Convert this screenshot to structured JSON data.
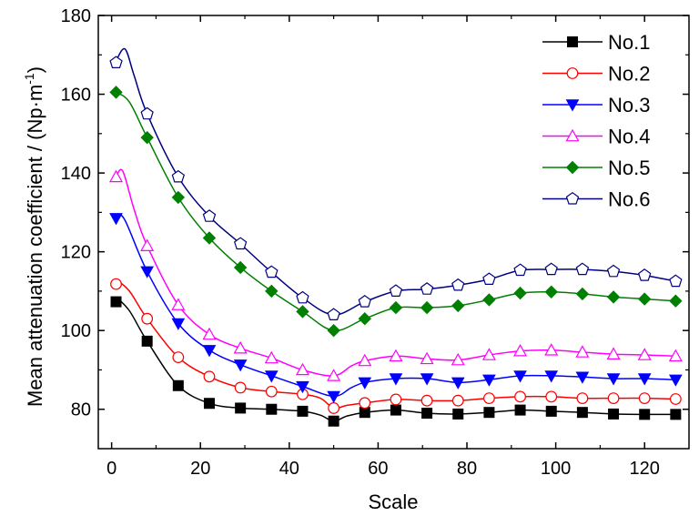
{
  "chart_data": {
    "type": "line",
    "xlabel": "Scale",
    "ylabel": "Mean attenuation coefficient / (Np·m",
    "ylabel_sup": "-1",
    "ylabel_end": ")",
    "xlim": [
      -3,
      130
    ],
    "ylim": [
      70,
      180
    ],
    "xticks": [
      0,
      20,
      40,
      60,
      80,
      100,
      120
    ],
    "yticks": [
      80,
      100,
      120,
      140,
      160,
      180
    ],
    "legend_position": "top-right",
    "grid": false,
    "series": [
      {
        "name": "No.1",
        "color": "#000000",
        "marker": "square-filled",
        "x": [
          1,
          8,
          15,
          22,
          29,
          36,
          43,
          50,
          57,
          64,
          71,
          78,
          85,
          92,
          99,
          106,
          113,
          120,
          127
        ],
        "y": [
          107.3,
          97.3,
          86.0,
          81.5,
          80.3,
          80.0,
          79.5,
          77.0,
          79.2,
          79.8,
          79.0,
          78.8,
          79.2,
          79.8,
          79.5,
          79.2,
          78.8,
          78.7,
          78.7
        ],
        "line_path": [
          [
            1,
            108.5
          ],
          [
            4,
            105
          ],
          [
            8,
            97.3
          ],
          [
            15,
            86.0
          ],
          [
            22,
            81.5
          ],
          [
            29,
            80.3
          ],
          [
            36,
            80.0
          ],
          [
            43,
            79.5
          ],
          [
            47,
            78.5
          ],
          [
            50,
            77.0
          ],
          [
            53,
            78.3
          ],
          [
            57,
            79.2
          ],
          [
            64,
            79.8
          ],
          [
            71,
            79.0
          ],
          [
            78,
            78.8
          ],
          [
            85,
            79.2
          ],
          [
            92,
            79.8
          ],
          [
            99,
            79.5
          ],
          [
            106,
            79.2
          ],
          [
            113,
            78.8
          ],
          [
            120,
            78.7
          ],
          [
            127,
            78.7
          ]
        ]
      },
      {
        "name": "No.2",
        "color": "#ff0000",
        "marker": "circle-open",
        "x": [
          1,
          8,
          15,
          22,
          29,
          36,
          43,
          50,
          57,
          64,
          71,
          78,
          85,
          92,
          99,
          106,
          113,
          120,
          127
        ],
        "y": [
          111.8,
          103.0,
          93.2,
          88.3,
          85.5,
          84.5,
          83.8,
          80.3,
          81.6,
          82.5,
          82.2,
          82.2,
          82.8,
          83.2,
          83.2,
          82.8,
          82.8,
          82.8,
          82.6
        ],
        "line_path": [
          [
            1,
            113
          ],
          [
            4,
            110
          ],
          [
            8,
            103.0
          ],
          [
            15,
            93.2
          ],
          [
            22,
            88.3
          ],
          [
            29,
            85.5
          ],
          [
            36,
            84.5
          ],
          [
            43,
            83.8
          ],
          [
            47,
            82.8
          ],
          [
            50,
            80.3
          ],
          [
            53,
            81.0
          ],
          [
            57,
            81.6
          ],
          [
            64,
            82.5
          ],
          [
            71,
            82.2
          ],
          [
            78,
            82.2
          ],
          [
            85,
            82.8
          ],
          [
            92,
            83.2
          ],
          [
            99,
            83.2
          ],
          [
            106,
            82.8
          ],
          [
            113,
            82.8
          ],
          [
            120,
            82.8
          ],
          [
            127,
            82.6
          ]
        ]
      },
      {
        "name": "No.3",
        "color": "#0000ff",
        "marker": "triangle-down-filled",
        "x": [
          1,
          8,
          15,
          22,
          29,
          36,
          43,
          50,
          57,
          64,
          71,
          78,
          85,
          92,
          99,
          106,
          113,
          120,
          127
        ],
        "y": [
          128.5,
          115.0,
          101.8,
          95.0,
          91.3,
          88.5,
          85.8,
          83.3,
          86.8,
          87.8,
          87.8,
          86.8,
          87.5,
          88.5,
          88.5,
          88.2,
          87.8,
          87.8,
          87.5
        ],
        "line_path": [
          [
            1,
            129.5
          ],
          [
            3,
            128
          ],
          [
            8,
            115.0
          ],
          [
            15,
            101.8
          ],
          [
            22,
            95.0
          ],
          [
            29,
            91.3
          ],
          [
            36,
            88.5
          ],
          [
            43,
            85.8
          ],
          [
            50,
            83.3
          ],
          [
            54,
            85.5
          ],
          [
            57,
            86.8
          ],
          [
            64,
            87.8
          ],
          [
            71,
            87.8
          ],
          [
            78,
            86.8
          ],
          [
            85,
            87.5
          ],
          [
            92,
            88.5
          ],
          [
            99,
            88.5
          ],
          [
            106,
            88.2
          ],
          [
            113,
            87.8
          ],
          [
            120,
            87.8
          ],
          [
            127,
            87.5
          ]
        ]
      },
      {
        "name": "No.4",
        "color": "#ff00ff",
        "marker": "triangle-up-open",
        "x": [
          1,
          8,
          15,
          22,
          29,
          36,
          43,
          50,
          57,
          64,
          71,
          78,
          85,
          92,
          99,
          106,
          113,
          120,
          127
        ],
        "y": [
          139.0,
          121.5,
          106.5,
          99.0,
          95.5,
          93.0,
          90.0,
          88.5,
          92.3,
          93.5,
          92.8,
          92.5,
          93.8,
          94.8,
          95.0,
          94.5,
          94.0,
          93.8,
          93.5
        ],
        "line_path": [
          [
            1,
            139
          ],
          [
            2.5,
            140.5
          ],
          [
            5,
            131
          ],
          [
            8,
            121.5
          ],
          [
            15,
            106.5
          ],
          [
            22,
            99.0
          ],
          [
            29,
            95.5
          ],
          [
            36,
            93.0
          ],
          [
            43,
            90.0
          ],
          [
            50,
            88.5
          ],
          [
            54,
            91
          ],
          [
            57,
            92.3
          ],
          [
            64,
            93.5
          ],
          [
            71,
            92.8
          ],
          [
            78,
            92.5
          ],
          [
            85,
            93.8
          ],
          [
            92,
            94.8
          ],
          [
            99,
            95.0
          ],
          [
            106,
            94.5
          ],
          [
            113,
            94.0
          ],
          [
            120,
            93.8
          ],
          [
            127,
            93.5
          ]
        ]
      },
      {
        "name": "No.5",
        "color": "#008000",
        "marker": "diamond-filled",
        "x": [
          1,
          8,
          15,
          22,
          29,
          36,
          43,
          50,
          57,
          64,
          71,
          78,
          85,
          92,
          99,
          106,
          113,
          120,
          127
        ],
        "y": [
          160.5,
          149.0,
          133.8,
          123.5,
          116.0,
          110.0,
          104.8,
          100.0,
          103.0,
          105.8,
          105.8,
          106.3,
          107.8,
          109.5,
          109.8,
          109.3,
          108.5,
          108.0,
          107.5
        ],
        "line_path": [
          [
            1,
            160.5
          ],
          [
            4,
            158
          ],
          [
            8,
            149.0
          ],
          [
            15,
            133.8
          ],
          [
            22,
            123.5
          ],
          [
            29,
            116.0
          ],
          [
            36,
            110.0
          ],
          [
            43,
            104.8
          ],
          [
            50,
            100.0
          ],
          [
            57,
            103.0
          ],
          [
            64,
            105.8
          ],
          [
            71,
            105.8
          ],
          [
            78,
            106.3
          ],
          [
            85,
            107.8
          ],
          [
            92,
            109.5
          ],
          [
            99,
            109.8
          ],
          [
            106,
            109.3
          ],
          [
            113,
            108.5
          ],
          [
            120,
            108.0
          ],
          [
            127,
            107.5
          ]
        ]
      },
      {
        "name": "No.6",
        "color": "#000080",
        "marker": "pentagon-open",
        "x": [
          1,
          8,
          15,
          22,
          29,
          36,
          43,
          50,
          57,
          64,
          71,
          78,
          85,
          92,
          99,
          106,
          113,
          120,
          127
        ],
        "y": [
          168.0,
          155.0,
          139.0,
          129.0,
          122.0,
          114.8,
          108.3,
          104.0,
          107.3,
          110.0,
          110.5,
          111.5,
          113.0,
          115.3,
          115.5,
          115.5,
          115.0,
          114.0,
          112.5
        ],
        "line_path": [
          [
            1,
            168.5
          ],
          [
            3,
            171.5
          ],
          [
            5,
            165
          ],
          [
            8,
            155.0
          ],
          [
            15,
            139.0
          ],
          [
            22,
            129.0
          ],
          [
            29,
            122.0
          ],
          [
            36,
            114.8
          ],
          [
            43,
            108.3
          ],
          [
            50,
            104.0
          ],
          [
            57,
            107.3
          ],
          [
            64,
            110.0
          ],
          [
            71,
            110.5
          ],
          [
            78,
            111.5
          ],
          [
            85,
            113.0
          ],
          [
            92,
            115.3
          ],
          [
            99,
            115.5
          ],
          [
            106,
            115.5
          ],
          [
            113,
            115.0
          ],
          [
            120,
            114.0
          ],
          [
            127,
            112.5
          ]
        ]
      }
    ]
  }
}
